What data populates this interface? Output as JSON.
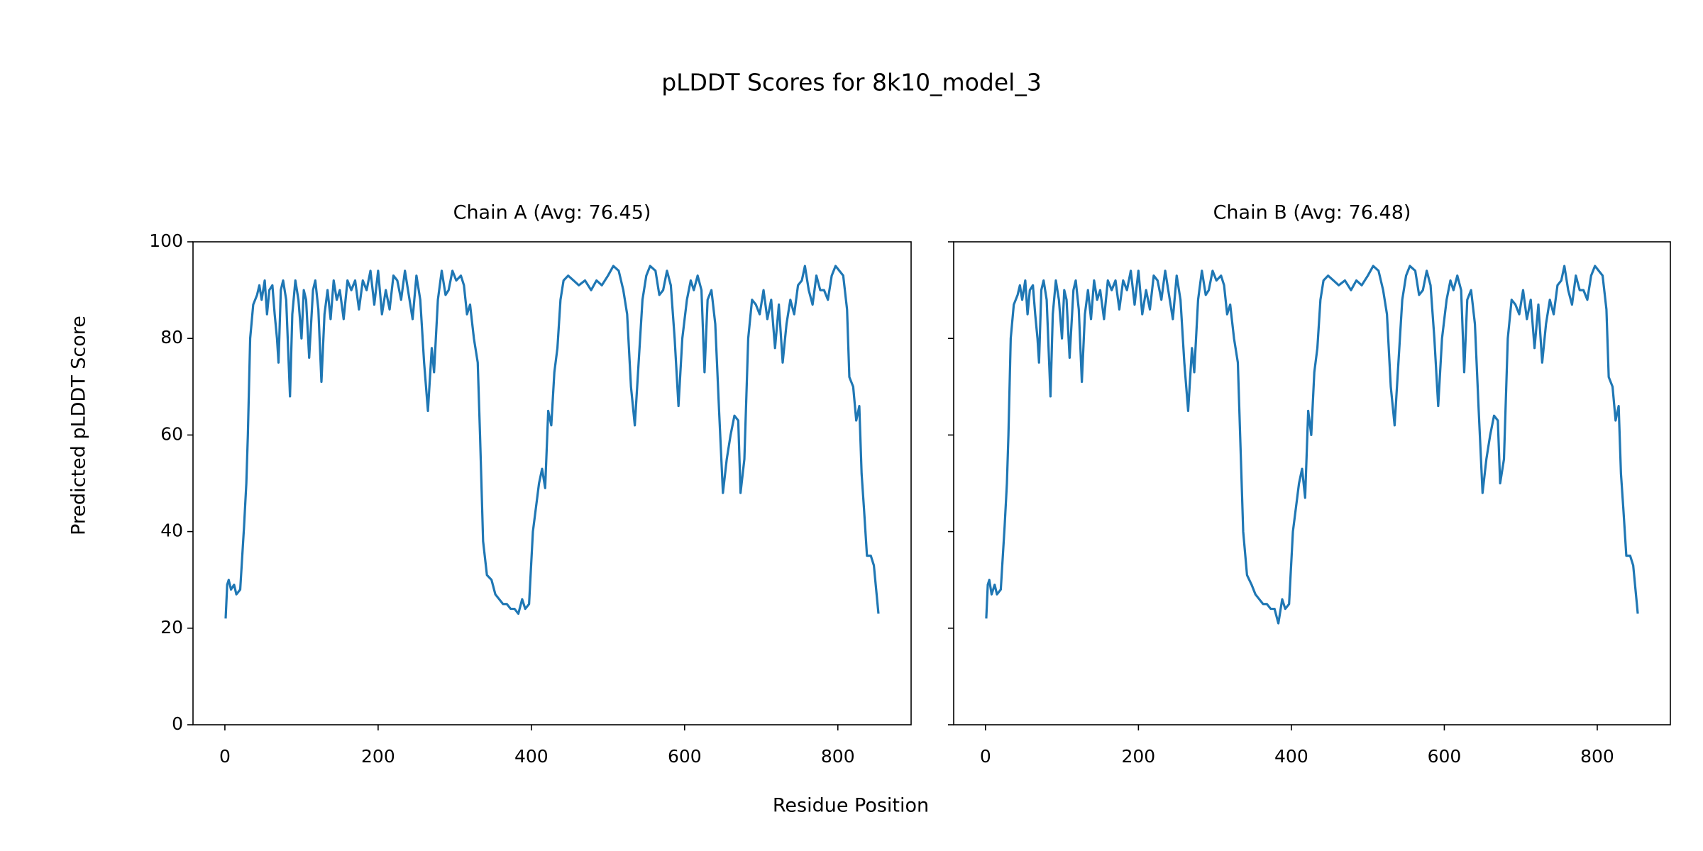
{
  "title": "pLDDT Scores for 8k10_model_3",
  "xlabel": "Residue Position",
  "ylabel": "Predicted pLDDT Score",
  "chart_data": [
    {
      "type": "line",
      "title": "Chain A (Avg: 76.45)",
      "xlim": [
        -41.6,
        895.6
      ],
      "ylim": [
        0,
        100
      ],
      "xticks": [
        0,
        200,
        400,
        600,
        800
      ],
      "yticks": [
        0,
        20,
        40,
        60,
        80,
        100
      ],
      "show_ytick_labels": true,
      "x": [
        1,
        3,
        5,
        8,
        12,
        15,
        20,
        25,
        28,
        30,
        33,
        37,
        42,
        45,
        48,
        52,
        55,
        58,
        62,
        65,
        68,
        70,
        73,
        76,
        80,
        85,
        88,
        92,
        96,
        100,
        103,
        106,
        110,
        115,
        118,
        122,
        126,
        130,
        134,
        138,
        142,
        146,
        150,
        155,
        160,
        165,
        170,
        175,
        180,
        185,
        190,
        195,
        200,
        205,
        210,
        215,
        220,
        225,
        230,
        235,
        240,
        245,
        250,
        255,
        260,
        265,
        270,
        273,
        278,
        283,
        288,
        292,
        297,
        302,
        308,
        312,
        316,
        320,
        325,
        330,
        333,
        337,
        342,
        348,
        353,
        358,
        363,
        368,
        373,
        378,
        383,
        388,
        392,
        397,
        402,
        406,
        410,
        414,
        418,
        422,
        426,
        430,
        434,
        438,
        442,
        448,
        455,
        462,
        470,
        478,
        485,
        492,
        500,
        507,
        514,
        520,
        525,
        530,
        535,
        540,
        545,
        550,
        555,
        562,
        567,
        572,
        577,
        582,
        587,
        592,
        597,
        603,
        608,
        612,
        617,
        622,
        626,
        630,
        635,
        640,
        645,
        650,
        655,
        660,
        665,
        670,
        673,
        678,
        683,
        688,
        693,
        698,
        703,
        708,
        713,
        718,
        723,
        728,
        733,
        738,
        743,
        748,
        753,
        757,
        762,
        767,
        772,
        777,
        782,
        787,
        792,
        797,
        802,
        807,
        812,
        815,
        820,
        824,
        828,
        831,
        834,
        838,
        843,
        847,
        850,
        853
      ],
      "series": [
        {
          "name": "Chain A",
          "color": "#1f77b4",
          "values": [
            22,
            29,
            30,
            28,
            29,
            27,
            28,
            41,
            50,
            60,
            80,
            87,
            89,
            91,
            88,
            92,
            85,
            90,
            91,
            85,
            80,
            75,
            90,
            92,
            88,
            68,
            85,
            92,
            88,
            80,
            90,
            88,
            76,
            90,
            92,
            86,
            71,
            85,
            90,
            84,
            92,
            88,
            90,
            84,
            92,
            90,
            92,
            86,
            92,
            90,
            94,
            87,
            94,
            85,
            90,
            86,
            93,
            92,
            88,
            94,
            89,
            84,
            93,
            88,
            75,
            65,
            78,
            73,
            88,
            94,
            89,
            90,
            94,
            92,
            93,
            91,
            85,
            87,
            80,
            75,
            60,
            38,
            31,
            30,
            27,
            26,
            25,
            25,
            24,
            24,
            23,
            26,
            24,
            25,
            40,
            45,
            50,
            53,
            49,
            65,
            62,
            73,
            78,
            88,
            92,
            93,
            92,
            91,
            92,
            90,
            92,
            91,
            93,
            95,
            94,
            90,
            85,
            70,
            62,
            75,
            88,
            93,
            95,
            94,
            89,
            90,
            94,
            91,
            80,
            66,
            80,
            88,
            92,
            90,
            93,
            90,
            73,
            88,
            90,
            83,
            65,
            48,
            55,
            60,
            64,
            63,
            48,
            55,
            80,
            88,
            87,
            85,
            90,
            84,
            88,
            78,
            87,
            75,
            83,
            88,
            85,
            91,
            92,
            95,
            90,
            87,
            93,
            90,
            90,
            88,
            93,
            95,
            94,
            93,
            86,
            72,
            70,
            63,
            66,
            52,
            45,
            35,
            35,
            33,
            28,
            23
          ]
        }
      ]
    },
    {
      "type": "line",
      "title": "Chain B (Avg: 76.48)",
      "xlim": [
        -41.6,
        895.6
      ],
      "ylim": [
        0,
        100
      ],
      "xticks": [
        0,
        200,
        400,
        600,
        800
      ],
      "yticks": [
        0,
        20,
        40,
        60,
        80,
        100
      ],
      "show_ytick_labels": false,
      "x": [
        1,
        3,
        5,
        8,
        12,
        15,
        20,
        25,
        28,
        30,
        33,
        37,
        42,
        45,
        48,
        52,
        55,
        58,
        62,
        65,
        68,
        70,
        73,
        76,
        80,
        85,
        88,
        92,
        96,
        100,
        103,
        106,
        110,
        115,
        118,
        122,
        126,
        130,
        134,
        138,
        142,
        146,
        150,
        155,
        160,
        165,
        170,
        175,
        180,
        185,
        190,
        195,
        200,
        205,
        210,
        215,
        220,
        225,
        230,
        235,
        240,
        245,
        250,
        255,
        260,
        265,
        270,
        273,
        278,
        283,
        288,
        292,
        297,
        302,
        308,
        312,
        316,
        320,
        325,
        330,
        333,
        337,
        342,
        348,
        353,
        358,
        363,
        368,
        373,
        378,
        383,
        388,
        392,
        397,
        402,
        406,
        410,
        414,
        418,
        422,
        426,
        430,
        434,
        438,
        442,
        448,
        455,
        462,
        470,
        478,
        485,
        492,
        500,
        507,
        514,
        520,
        525,
        530,
        535,
        540,
        545,
        550,
        555,
        562,
        567,
        572,
        577,
        582,
        587,
        592,
        597,
        603,
        608,
        612,
        617,
        622,
        626,
        630,
        635,
        640,
        645,
        650,
        655,
        660,
        665,
        670,
        673,
        678,
        683,
        688,
        693,
        698,
        703,
        708,
        713,
        718,
        723,
        728,
        733,
        738,
        743,
        748,
        753,
        757,
        762,
        767,
        772,
        777,
        782,
        787,
        792,
        797,
        802,
        807,
        812,
        815,
        820,
        824,
        828,
        831,
        834,
        838,
        843,
        847,
        850,
        853
      ],
      "series": [
        {
          "name": "Chain B",
          "color": "#1f77b4",
          "values": [
            22,
            29,
            30,
            27,
            29,
            27,
            28,
            41,
            50,
            60,
            80,
            87,
            89,
            91,
            88,
            92,
            85,
            90,
            91,
            85,
            80,
            75,
            90,
            92,
            88,
            68,
            85,
            92,
            88,
            80,
            90,
            88,
            76,
            90,
            92,
            86,
            71,
            85,
            90,
            84,
            92,
            88,
            90,
            84,
            92,
            90,
            92,
            86,
            92,
            90,
            94,
            87,
            94,
            85,
            90,
            86,
            93,
            92,
            88,
            94,
            89,
            84,
            93,
            88,
            75,
            65,
            78,
            73,
            88,
            94,
            89,
            90,
            94,
            92,
            93,
            91,
            85,
            87,
            80,
            75,
            60,
            40,
            31,
            29,
            27,
            26,
            25,
            25,
            24,
            24,
            21,
            26,
            24,
            25,
            40,
            45,
            50,
            53,
            47,
            65,
            60,
            73,
            78,
            88,
            92,
            93,
            92,
            91,
            92,
            90,
            92,
            91,
            93,
            95,
            94,
            90,
            85,
            70,
            62,
            75,
            88,
            93,
            95,
            94,
            89,
            90,
            94,
            91,
            80,
            66,
            80,
            88,
            92,
            90,
            93,
            90,
            73,
            88,
            90,
            83,
            65,
            48,
            55,
            60,
            64,
            63,
            50,
            55,
            80,
            88,
            87,
            85,
            90,
            84,
            88,
            78,
            87,
            75,
            83,
            88,
            85,
            91,
            92,
            95,
            90,
            87,
            93,
            90,
            90,
            88,
            93,
            95,
            94,
            93,
            86,
            72,
            70,
            63,
            66,
            52,
            45,
            35,
            35,
            33,
            28,
            23
          ]
        }
      ]
    }
  ]
}
